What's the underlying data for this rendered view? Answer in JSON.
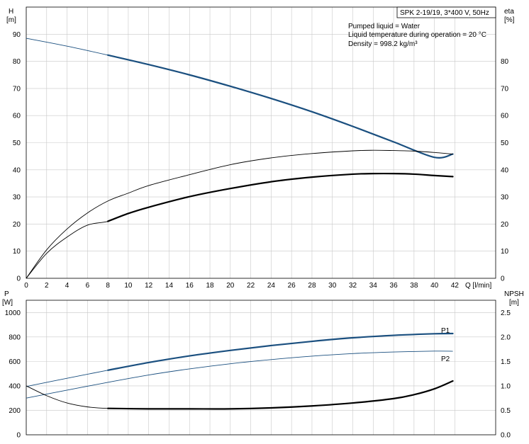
{
  "chart_data": [
    {
      "type": "line",
      "panel": "top",
      "annotation": {
        "model": "SPK 2-19/19, 3*400 V, 50Hz",
        "lines": [
          "Pumped liquid = Water",
          "Liquid temperature during operation = 20 °C",
          "Density = 998.2 kg/m³"
        ]
      },
      "left_axis": {
        "label_line1": "H",
        "label_line2": "[m]",
        "ylim": [
          0,
          100
        ],
        "ticks": [
          0,
          10,
          20,
          30,
          40,
          50,
          60,
          70,
          80,
          90
        ]
      },
      "right_axis": {
        "label_line1": "eta",
        "label_line2": "[%]",
        "ylim": [
          0,
          100
        ],
        "ticks": [
          0,
          10,
          20,
          30,
          40,
          50,
          60,
          70,
          80
        ]
      },
      "x_axis": {
        "label": "Q [l/min]",
        "xlim": [
          0,
          46
        ],
        "ticks": [
          0,
          2,
          4,
          6,
          8,
          10,
          12,
          14,
          16,
          18,
          20,
          22,
          24,
          26,
          28,
          30,
          32,
          34,
          36,
          38,
          40,
          42
        ]
      },
      "grid": true,
      "series": [
        {
          "axis": "left",
          "color": "#1a4f7f",
          "width_thin": 0.9,
          "width_thick": 2.2,
          "thick_from": 8,
          "x": [
            0,
            4,
            8,
            12,
            16,
            20,
            24,
            28,
            32,
            36,
            40,
            41.8
          ],
          "y": [
            88.5,
            85.6,
            82.3,
            78.8,
            75.0,
            70.8,
            66.3,
            61.4,
            56.0,
            50.3,
            44.6,
            45.8
          ]
        },
        {
          "axis": "right",
          "color": "#000000",
          "width_thin": 0.9,
          "width_thick": 0.9,
          "thick_from": 0,
          "x": [
            0,
            2,
            4,
            6,
            8,
            10,
            12,
            16,
            20,
            24,
            28,
            32,
            34,
            36,
            38,
            40,
            41.8
          ],
          "y": [
            0,
            10.5,
            18.2,
            24.1,
            28.5,
            31.4,
            34.2,
            38.2,
            41.9,
            44.4,
            46.0,
            47.0,
            47.2,
            47.1,
            46.9,
            46.4,
            45.8
          ]
        },
        {
          "axis": "right",
          "color": "#000000",
          "width_thin": 0.9,
          "width_thick": 2.2,
          "thick_from": 8,
          "x": [
            0,
            2,
            4,
            6,
            8,
            10,
            12,
            16,
            20,
            24,
            28,
            32,
            34,
            36,
            38,
            40,
            41.8
          ],
          "y": [
            0,
            9.2,
            15.2,
            19.6,
            21.0,
            23.9,
            26.2,
            30.1,
            33.1,
            35.6,
            37.3,
            38.4,
            38.6,
            38.6,
            38.4,
            37.9,
            37.5
          ]
        }
      ]
    },
    {
      "type": "line",
      "panel": "bottom",
      "left_axis": {
        "label_line1": "P",
        "label_line2": "[W]",
        "ylim": [
          0,
          1100
        ],
        "ticks": [
          0,
          200,
          400,
          600,
          800,
          1000
        ]
      },
      "right_axis": {
        "label_line1": "NPSH",
        "label_line2": "[m]",
        "ylim": [
          0,
          2.75
        ],
        "ticks": [
          "0.0",
          "0.5",
          "1.0",
          "1.5",
          "2.0",
          "2.5"
        ]
      },
      "x_axis": {
        "xlim": [
          0,
          46
        ]
      },
      "grid": true,
      "series": [
        {
          "name": "P1",
          "axis": "left",
          "color": "#1a4f7f",
          "width_thin": 0.9,
          "width_thick": 2.2,
          "thick_from": 8,
          "x": [
            0,
            4,
            8,
            12,
            16,
            20,
            24,
            28,
            32,
            36,
            40,
            41.8
          ],
          "y": [
            395,
            462,
            528,
            591,
            645,
            690,
            730,
            764,
            793,
            813,
            826,
            828
          ]
        },
        {
          "name": "P2",
          "axis": "left",
          "color": "#1a4f7f",
          "width_thin": 0.9,
          "width_thick": 0.9,
          "thick_from": 0,
          "x": [
            0,
            4,
            8,
            12,
            16,
            20,
            24,
            28,
            32,
            36,
            40,
            41.8
          ],
          "y": [
            300,
            365,
            429,
            489,
            539,
            581,
            615,
            643,
            664,
            677,
            684,
            683
          ]
        },
        {
          "axis": "right",
          "color": "#000000",
          "width_thin": 0.9,
          "width_thick": 2.2,
          "thick_from": 8,
          "x": [
            0,
            2,
            4,
            6,
            8,
            12,
            16,
            20,
            24,
            28,
            32,
            36,
            38,
            40,
            41.8
          ],
          "y": [
            1.0,
            0.8,
            0.65,
            0.57,
            0.54,
            0.53,
            0.53,
            0.53,
            0.55,
            0.59,
            0.65,
            0.74,
            0.82,
            0.94,
            1.1
          ]
        }
      ]
    }
  ]
}
